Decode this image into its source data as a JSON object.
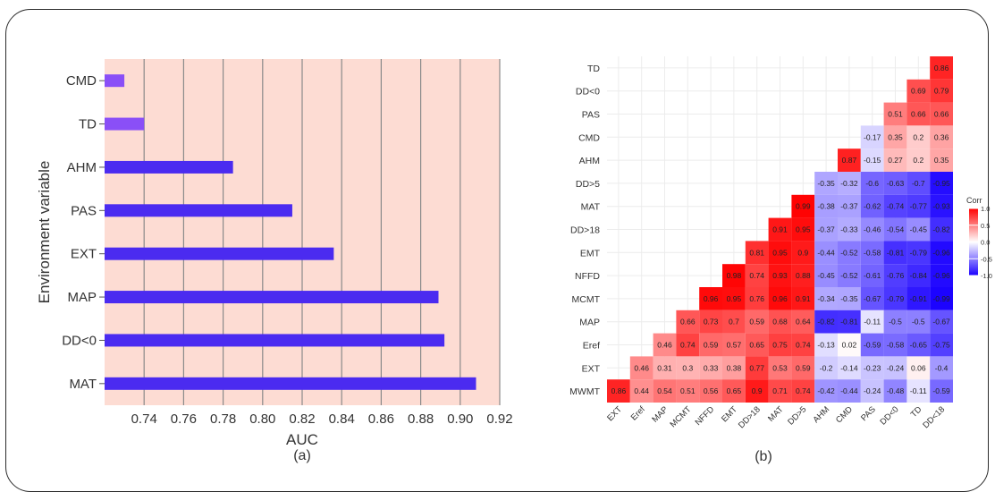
{
  "chart_data": [
    {
      "type": "bar",
      "orientation": "horizontal",
      "panel_label": "(a)",
      "title": "",
      "xlabel": "AUC",
      "ylabel": "Environment variable",
      "xlim": [
        0.72,
        0.92
      ],
      "xticks": [
        "0.74",
        "0.76",
        "0.78",
        "0.80",
        "0.82",
        "0.84",
        "0.86",
        "0.88",
        "0.90",
        "0.92"
      ],
      "grid": true,
      "background_color": "#fddcd3",
      "categories": [
        "CMD",
        "TD",
        "AHM",
        "PAS",
        "EXT",
        "MAP",
        "DD<0",
        "MAT"
      ],
      "values": [
        0.73,
        0.74,
        0.785,
        0.815,
        0.836,
        0.889,
        0.892,
        0.908
      ],
      "colors": [
        "#8a4ff7",
        "#8a4ff7",
        "#4b2bf0",
        "#4b2bf0",
        "#4b2bf0",
        "#4b2bf0",
        "#4b2bf0",
        "#4b2bf0"
      ]
    },
    {
      "type": "heatmap",
      "panel_label": "(b)",
      "legend_title": "Corr",
      "legend_ticks": [
        "1.0",
        "0.5",
        "0.0",
        "-0.5",
        "-1.0"
      ],
      "legend_range": [
        -1.0,
        1.0
      ],
      "color_low": "#1a00ff",
      "color_mid": "#ffffff",
      "color_high": "#ff0000",
      "x_labels": [
        "EXT",
        "Eref",
        "MAP",
        "MCMT",
        "NFFD",
        "EMT",
        "DD>18",
        "MAT",
        "DD>5",
        "AHM",
        "CMD",
        "PAS",
        "DD<0",
        "TD",
        "DD<18"
      ],
      "y_labels": [
        "TD",
        "DD<0",
        "PAS",
        "CMD",
        "AHM",
        "DD>5",
        "MAT",
        "DD>18",
        "EMT",
        "NFFD",
        "MCMT",
        "MAP",
        "Eref",
        "EXT",
        "MWMT"
      ],
      "rows": [
        [
          "0.86"
        ],
        [
          "0.69",
          "0.79"
        ],
        [
          "0.51",
          "0.66",
          "0.66"
        ],
        [
          "-0.17",
          "0.35",
          "0.2",
          "0.36"
        ],
        [
          "0.87",
          "-0.15",
          "0.27",
          "0.2",
          "0.35"
        ],
        [
          "-0.35",
          "-0.32",
          "-0.6",
          "-0.63",
          "-0.7",
          "-0.95"
        ],
        [
          "0.99",
          "-0.38",
          "-0.37",
          "-0.62",
          "-0.74",
          "-0.77",
          "-0.93"
        ],
        [
          "0.91",
          "0.95",
          "-0.37",
          "-0.33",
          "-0.46",
          "-0.54",
          "-0.45",
          "-0.82"
        ],
        [
          "0.81",
          "0.95",
          "0.9",
          "-0.44",
          "-0.52",
          "-0.58",
          "-0.81",
          "-0.79",
          "-0.96"
        ],
        [
          "0.98",
          "0.74",
          "0.93",
          "0.88",
          "-0.45",
          "-0.52",
          "-0.61",
          "-0.76",
          "-0.84",
          "-0.96"
        ],
        [
          "0.96",
          "0.95",
          "0.76",
          "0.96",
          "0.91",
          "-0.34",
          "-0.35",
          "-0.67",
          "-0.79",
          "-0.91",
          "-0.99"
        ],
        [
          "0.66",
          "0.73",
          "0.7",
          "0.59",
          "0.68",
          "0.64",
          "-0.82",
          "-0.81",
          "-0.11",
          "-0.5",
          "-0.5",
          "-0.67"
        ],
        [
          "0.46",
          "0.74",
          "0.59",
          "0.57",
          "0.65",
          "0.75",
          "0.74",
          "-0.13",
          "0.02",
          "-0.59",
          "-0.58",
          "-0.65",
          "-0.75"
        ],
        [
          "0.46",
          "0.31",
          "0.3",
          "0.33",
          "0.38",
          "0.77",
          "0.53",
          "0.59",
          "-0.2",
          "-0.14",
          "-0.23",
          "-0.24",
          "0.06",
          "-0.4"
        ],
        [
          "0.86",
          "0.44",
          "0.54",
          "0.51",
          "0.56",
          "0.65",
          "0.9",
          "0.71",
          "0.74",
          "-0.42",
          "-0.44",
          "-0.24",
          "-0.48",
          "-0.11",
          "-0.59"
        ]
      ]
    }
  ]
}
